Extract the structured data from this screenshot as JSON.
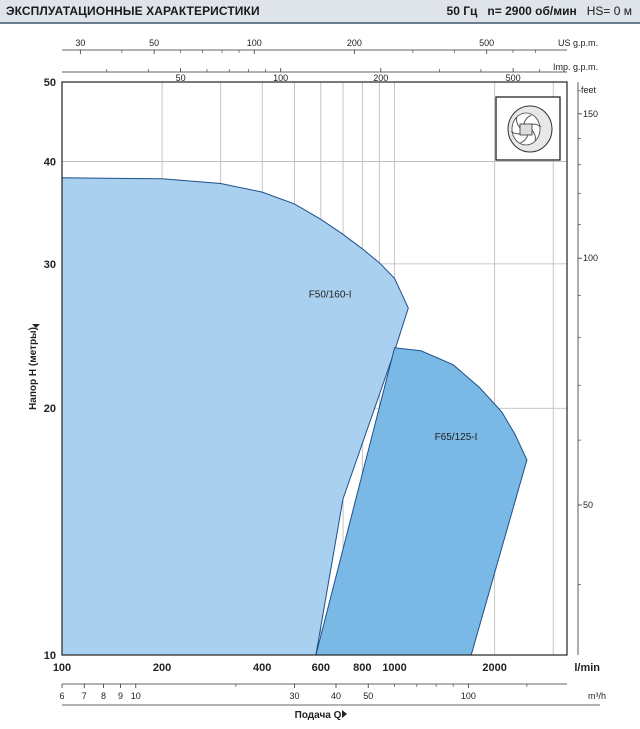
{
  "header": {
    "title": "ЭКСПЛУАТАЦИОННЫЕ ХАРАКТЕРИСТИКИ",
    "frequency": "50 Гц",
    "speed": "n= 2900 об/мин",
    "hs": "HS= 0 м"
  },
  "chart_data": {
    "type": "area",
    "xscale": "log",
    "yscale": "log",
    "xlabel": "Подача Q",
    "ylabel": "Напор H (метры)",
    "xlim": [
      100,
      3300
    ],
    "ylim": [
      10,
      50
    ],
    "x_unit": "l/min",
    "x_ticks": [
      100,
      200,
      400,
      600,
      800,
      1000,
      2000
    ],
    "x_gridlines": [
      100,
      200,
      300,
      400,
      500,
      600,
      700,
      800,
      900,
      1000,
      2000,
      3000
    ],
    "y_ticks": [
      10,
      20,
      30,
      40,
      50
    ],
    "top_axes": [
      {
        "unit": "US g.p.m.",
        "ticks": [
          30,
          50,
          100,
          200,
          500
        ]
      },
      {
        "unit": "Imp. g.p.m.",
        "ticks": [
          50,
          100,
          200,
          500
        ]
      }
    ],
    "right_axis": {
      "unit": "feet",
      "ticks": [
        50,
        100,
        150
      ]
    },
    "bottom_axis": {
      "unit": "m³/h",
      "ticks": [
        6,
        7,
        8,
        9,
        10,
        30,
        40,
        50,
        100
      ]
    },
    "series": [
      {
        "name": "F50/160-I",
        "color": "#a9d0ef",
        "curve": [
          [
            100,
            38.2
          ],
          [
            200,
            38.1
          ],
          [
            300,
            37.6
          ],
          [
            400,
            36.7
          ],
          [
            500,
            35.5
          ],
          [
            600,
            34.0
          ],
          [
            700,
            32.6
          ],
          [
            800,
            31.3
          ],
          [
            900,
            30.1
          ],
          [
            1000,
            28.8
          ],
          [
            1050,
            27.6
          ],
          [
            1100,
            26.5
          ]
        ],
        "lower_edge": [
          [
            1100,
            26.5
          ],
          [
            1000,
            23.5
          ],
          [
            700,
            15.5
          ],
          [
            580,
            10.0
          ]
        ]
      },
      {
        "name": "F65/125-I",
        "color": "#7ab8e6",
        "curve": [
          [
            1000,
            23.7
          ],
          [
            1200,
            23.5
          ],
          [
            1500,
            22.6
          ],
          [
            1800,
            21.2
          ],
          [
            2100,
            19.8
          ],
          [
            2300,
            18.6
          ],
          [
            2500,
            17.3
          ]
        ],
        "lower_edge": [
          [
            2500,
            17.3
          ],
          [
            1700,
            10.0
          ]
        ],
        "left_edge": [
          [
            580,
            10.0
          ],
          [
            1000,
            23.7
          ]
        ]
      }
    ]
  },
  "icon": "impeller-icon"
}
